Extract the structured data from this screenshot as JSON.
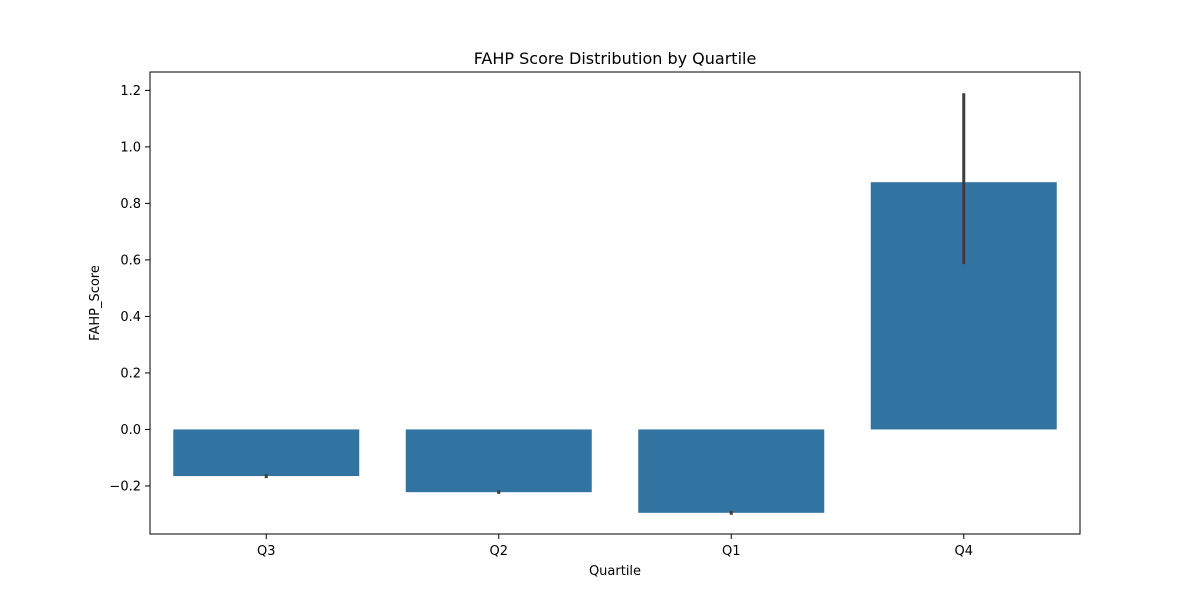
{
  "chart_data": {
    "type": "bar",
    "title": "FAHP Score Distribution by Quartile",
    "xlabel": "Quartile",
    "ylabel": "FAHP_Score",
    "categories": [
      "Q3",
      "Q2",
      "Q1",
      "Q4"
    ],
    "values": [
      -0.165,
      -0.222,
      -0.295,
      0.875
    ],
    "error_bars": [
      {
        "low": -0.172,
        "high": -0.158
      },
      {
        "low": -0.228,
        "high": -0.216
      },
      {
        "low": -0.302,
        "high": -0.288
      },
      {
        "low": 0.585,
        "high": 1.19
      }
    ],
    "ylim": [
      -0.37,
      1.265
    ],
    "yticks": [
      -0.2,
      0.0,
      0.2,
      0.4,
      0.6,
      0.8,
      1.0,
      1.2
    ],
    "ytick_labels": [
      "−0.2",
      "0.0",
      "0.2",
      "0.4",
      "0.6",
      "0.8",
      "1.0",
      "1.2"
    ],
    "grid": false,
    "bar_color": "#3274a1",
    "errorbar_color": "#3d3d3d"
  }
}
